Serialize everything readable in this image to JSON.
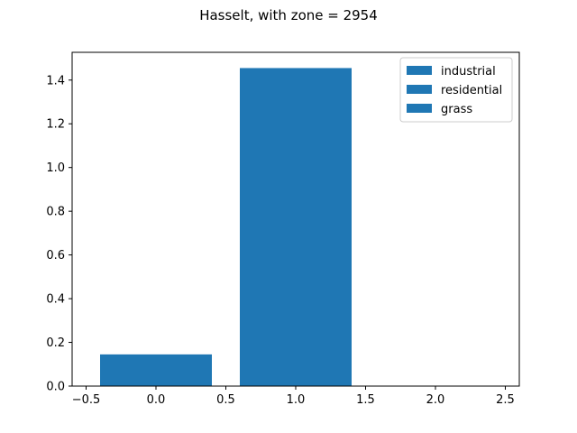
{
  "chart_data": {
    "type": "bar",
    "title": "Hasselt, with zone = 2954",
    "xlabel": "",
    "ylabel": "",
    "x": [
      0,
      1,
      2
    ],
    "values": [
      0.145,
      1.455,
      0.0
    ],
    "bar_width": 0.8,
    "bar_color": "#1f77b4",
    "xlim": [
      -0.6,
      2.6
    ],
    "ylim": [
      0,
      1.527
    ],
    "xticks": [
      -0.5,
      0.0,
      0.5,
      1.0,
      1.5,
      2.0,
      2.5
    ],
    "xtick_labels": [
      "−0.5",
      "0.0",
      "0.5",
      "1.0",
      "1.5",
      "2.0",
      "2.5"
    ],
    "yticks": [
      0.0,
      0.2,
      0.4,
      0.6,
      0.8,
      1.0,
      1.2,
      1.4
    ],
    "ytick_labels": [
      "0.0",
      "0.2",
      "0.4",
      "0.6",
      "0.8",
      "1.0",
      "1.2",
      "1.4"
    ],
    "legend": {
      "placement": "top-right",
      "entries": [
        "industrial",
        "residential",
        "grass"
      ]
    },
    "grid": false
  }
}
